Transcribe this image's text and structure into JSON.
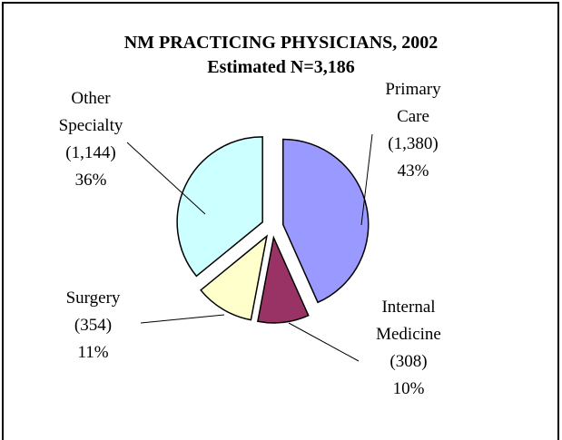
{
  "chart_data": {
    "type": "pie",
    "title": "NM PRACTICING PHYSICIANS, 2002",
    "subtitle": "Estimated N=3,186",
    "categories": [
      "Primary Care",
      "Internal Medicine",
      "Surgery",
      "Other Specialty"
    ],
    "values": [
      1380,
      308,
      354,
      1144
    ],
    "value_labels": [
      "(1,380)",
      "(308)",
      "(354)",
      "(1,144)"
    ],
    "percentages": [
      43,
      10,
      11,
      36
    ],
    "percentage_labels": [
      "43%",
      "10%",
      "11%",
      "36%"
    ],
    "colors": [
      "#9999ff",
      "#993366",
      "#ffffcc",
      "#ccffff"
    ]
  }
}
